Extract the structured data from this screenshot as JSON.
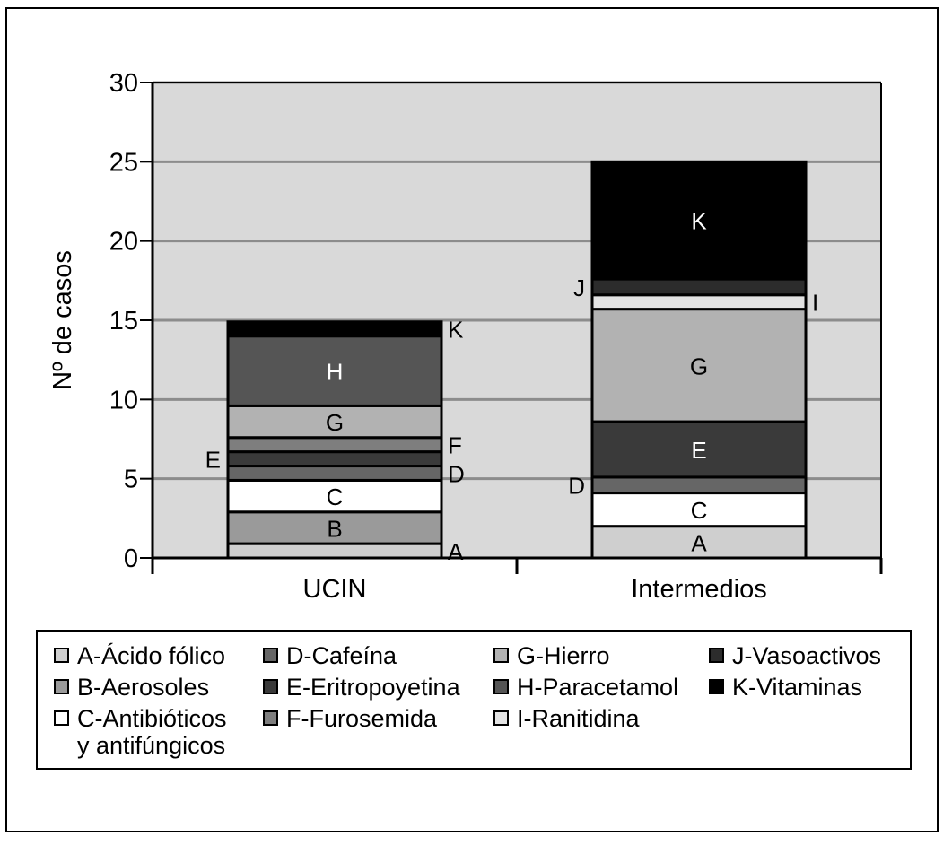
{
  "chart_data": {
    "type": "bar",
    "stacked": true,
    "categories": [
      "UCIN",
      "Intermedios"
    ],
    "ylabel": "Nº de casos",
    "ylim": [
      0,
      30
    ],
    "yticks": [
      "0",
      "5",
      "10",
      "15",
      "20",
      "25",
      "30"
    ],
    "grid": true,
    "legend_position": "bottom",
    "series": [
      {
        "key": "A",
        "name": "A-Ácido fólico",
        "color": "#cfcfcf",
        "values": [
          0.9,
          2.0
        ]
      },
      {
        "key": "B",
        "name": "B-Aerosoles",
        "color": "#9a9a9a",
        "values": [
          2.0,
          0
        ]
      },
      {
        "key": "C",
        "name": "C-Antibióticos y antifúngicos",
        "color": "#ffffff",
        "values": [
          2.0,
          2.1
        ]
      },
      {
        "key": "D",
        "name": "D-Cafeína",
        "color": "#666666",
        "values": [
          0.9,
          1.0
        ]
      },
      {
        "key": "E",
        "name": "E-Eritropoyetina",
        "color": "#3a3a3a",
        "values": [
          0.9,
          3.5
        ]
      },
      {
        "key": "F",
        "name": "F-Furosemida",
        "color": "#7e7e7e",
        "values": [
          0.9,
          0
        ]
      },
      {
        "key": "G",
        "name": "G-Hierro",
        "color": "#b2b2b2",
        "values": [
          2.0,
          7.1
        ]
      },
      {
        "key": "H",
        "name": "H-Paracetamol",
        "color": "#555555",
        "values": [
          4.4,
          0
        ]
      },
      {
        "key": "I",
        "name": "I-Ranitidina",
        "color": "#e3e3e3",
        "values": [
          0,
          0.9
        ]
      },
      {
        "key": "J",
        "name": "J-Vasoactivos",
        "color": "#2c2c2c",
        "values": [
          0,
          1.0
        ]
      },
      {
        "key": "K",
        "name": "K-Vitaminas",
        "color": "#000000",
        "values": [
          0.9,
          7.4
        ]
      }
    ],
    "legend_rows": [
      [
        "A-Ácido fólico",
        "D-Cafeína",
        "G-Hierro",
        "J-Vasoactivos"
      ],
      [
        "B-Aerosoles",
        "E-Eritropoyetina",
        "H-Paracetamol",
        "K-Vitaminas"
      ],
      [
        "C-Antibióticos\ny antifúngicos",
        "F-Furosemida",
        "I-Ranitidina"
      ]
    ]
  }
}
